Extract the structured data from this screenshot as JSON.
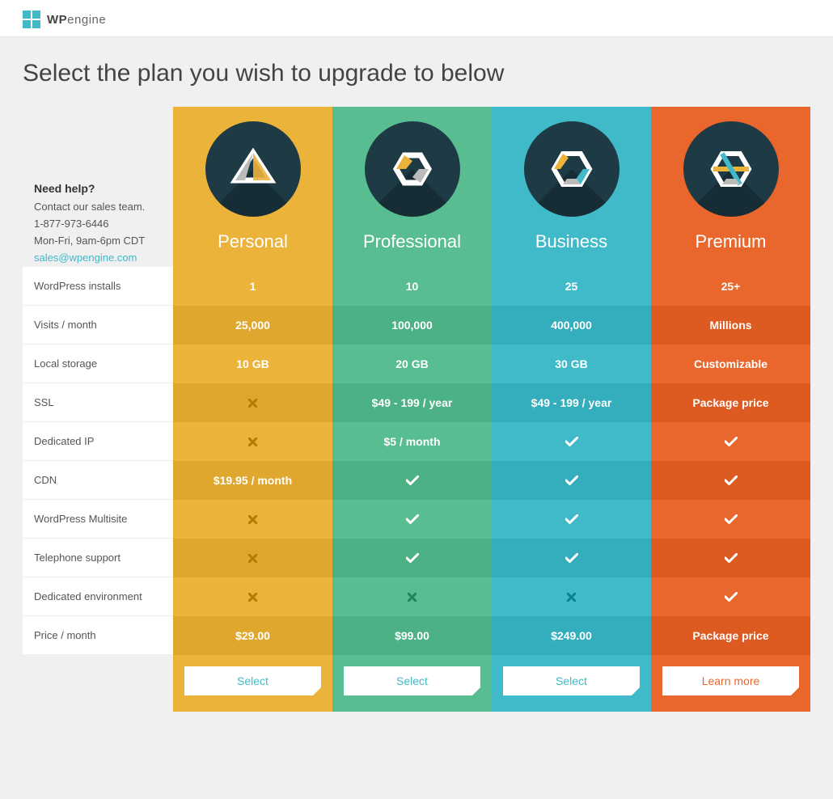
{
  "brand": {
    "wp": "WP",
    "engine": "engine"
  },
  "page_title": "Select the plan you wish to upgrade to below",
  "help": {
    "heading": "Need help?",
    "subtext": "Contact our sales team.",
    "phone": "1-877-973-6446",
    "hours": "Mon-Fri, 9am-6pm CDT",
    "email": "sales@wpengine.com"
  },
  "plans": [
    {
      "key": "personal",
      "name": "Personal",
      "color": "#ecb33b",
      "cta": "Select",
      "cta_color": "#40bac8"
    },
    {
      "key": "professional",
      "name": "Professional",
      "color": "#59bd92",
      "cta": "Select",
      "cta_color": "#40bac8"
    },
    {
      "key": "business",
      "name": "Business",
      "color": "#40bac8",
      "cta": "Select",
      "cta_color": "#40bac8"
    },
    {
      "key": "premium",
      "name": "Premium",
      "color": "#e9662c",
      "cta": "Learn more",
      "cta_color": "#e9662c"
    }
  ],
  "features": [
    {
      "label": "WordPress installs",
      "values": [
        "1",
        "10",
        "25",
        "25+"
      ]
    },
    {
      "label": "Visits / month",
      "values": [
        "25,000",
        "100,000",
        "400,000",
        "Millions"
      ]
    },
    {
      "label": "Local storage",
      "values": [
        "10 GB",
        "20 GB",
        "30 GB",
        "Customizable"
      ]
    },
    {
      "label": "SSL",
      "values": [
        "__x",
        "$49 - 199 / year",
        "$49 - 199 / year",
        "Package price"
      ]
    },
    {
      "label": "Dedicated IP",
      "values": [
        "__x",
        "$5 / month",
        "__check",
        "__check"
      ]
    },
    {
      "label": "CDN",
      "values": [
        "$19.95 / month",
        "__check",
        "__check",
        "__check"
      ]
    },
    {
      "label": "WordPress Multisite",
      "values": [
        "__x",
        "__check",
        "__check",
        "__check"
      ]
    },
    {
      "label": "Telephone support",
      "values": [
        "__x",
        "__check",
        "__check",
        "__check"
      ]
    },
    {
      "label": "Dedicated environment",
      "values": [
        "__x",
        "__x",
        "__x",
        "__check"
      ]
    },
    {
      "label": "Price / month",
      "values": [
        "$29.00",
        "$99.00",
        "$249.00",
        "Package price"
      ]
    }
  ],
  "colors": {
    "circle_bg": "#1e3a44",
    "page_bg": "#f0f0f0",
    "label_bg": "#ffffff"
  }
}
